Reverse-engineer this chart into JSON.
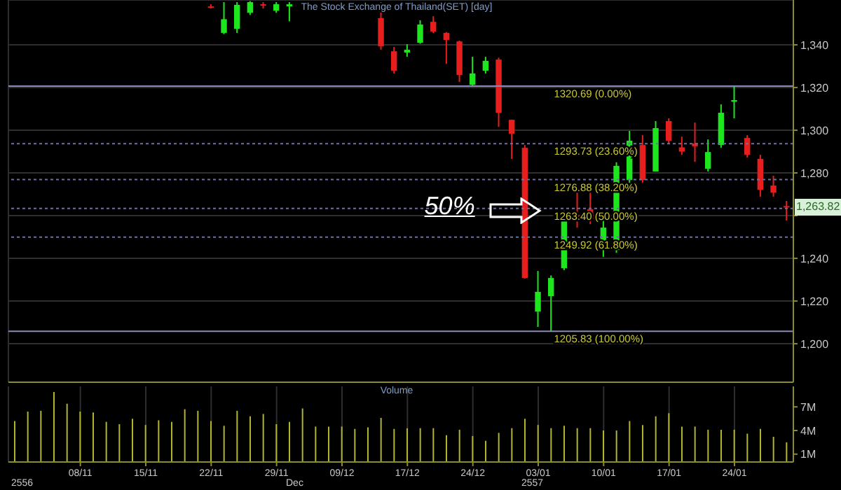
{
  "chart_data": [
    {
      "type": "candlestick",
      "title": "The Stock Exchange of Thailand(SET) [day]",
      "categories": [
        null,
        null,
        null,
        null,
        null,
        null,
        null,
        null,
        null,
        null,
        null,
        null,
        null,
        null,
        null,
        null,
        null,
        null,
        null,
        null,
        null,
        null,
        null,
        null,
        null,
        null,
        null,
        null,
        null,
        null,
        null,
        null,
        null,
        null,
        null,
        null,
        null,
        null,
        null,
        null,
        null,
        null,
        null,
        null,
        null,
        null,
        null,
        null,
        null,
        null,
        null,
        null,
        null,
        null,
        null,
        null,
        null,
        null,
        null,
        null
      ],
      "ohlc": [
        null,
        null,
        null,
        null,
        null,
        null,
        null,
        null,
        null,
        null,
        null,
        null,
        null,
        null,
        null,
        [
          1358,
          1359,
          1357,
          1357.5
        ],
        [
          1345.6,
          1360,
          1345,
          1352
        ],
        [
          1347.5,
          1360,
          1345.6,
          1358.7
        ],
        [
          1355,
          1360.5,
          1354,
          1360
        ],
        [
          1359,
          1360,
          1357,
          1358.5
        ],
        [
          1356,
          1360,
          1355,
          1359
        ],
        [
          1358,
          1360,
          1351,
          1359
        ],
        null,
        null,
        null,
        null,
        null,
        null,
        [
          1352.5,
          1360,
          1337.7,
          1339.3
        ],
        [
          1337,
          1339,
          1326.6,
          1327.9
        ],
        [
          1336.4,
          1340.3,
          1334.4,
          1337.7
        ],
        [
          1341,
          1351.5,
          1340.5,
          1349.5
        ],
        [
          1350.8,
          1353.4,
          1345.5,
          1346.2
        ],
        [
          1345.6,
          1346,
          1331.1,
          1342.3
        ],
        [
          1341.6,
          1342,
          1322.6,
          1325.9
        ],
        [
          1321.3,
          1334.4,
          1320.5,
          1326.6
        ],
        [
          1327.9,
          1334.4,
          1326.6,
          1332.5
        ],
        [
          1333.1,
          1334,
          1301.6,
          1308.2
        ],
        [
          1304.9,
          1305,
          1286.6,
          1298.4
        ],
        [
          1291.8,
          1293.1,
          1230.5,
          1230.8
        ],
        [
          1215.1,
          1234.1,
          1207.9,
          1224.3
        ],
        [
          1222.3,
          1232,
          1205.83,
          1230.8
        ],
        [
          1235.4,
          1262.3,
          1234.5,
          1261.6
        ],
        [
          1260.3,
          1272,
          1254.4,
          1257.7
        ],
        [
          1263,
          1270.8,
          1256,
          1258.4
        ],
        [
          1247.9,
          1258,
          1240.7,
          1254.4
        ],
        [
          1243.9,
          1285,
          1242.6,
          1283.3
        ],
        [
          1276.7,
          1299.7,
          1275.4,
          1295.1
        ],
        [
          1293.1,
          1297.7,
          1275.4,
          1276.7
        ],
        [
          1280.7,
          1304.3,
          1280.7,
          1301
        ],
        [
          1304.3,
          1305.6,
          1293.8,
          1295.1
        ],
        [
          1292,
          1297,
          1288.5,
          1290
        ],
        [
          1293.8,
          1303.6,
          1285.2,
          1292.5
        ],
        [
          1282,
          1295.7,
          1280.7,
          1289.8
        ],
        [
          1293.1,
          1312.1,
          1291.8,
          1308.2
        ],
        [
          1313.4,
          1320.69,
          1305.6,
          1314.1
        ],
        [
          1296.4,
          1297.7,
          1287.2,
          1288.5
        ],
        [
          1286.6,
          1288.5,
          1268.9,
          1272.1
        ],
        [
          1274.1,
          1278.7,
          1268.9,
          1270.8
        ],
        [
          1264.5,
          1266.9,
          1257.7,
          1263.82
        ]
      ],
      "colors": [
        null,
        null,
        null,
        null,
        null,
        null,
        null,
        null,
        null,
        null,
        null,
        null,
        null,
        null,
        null,
        "#e61e1e",
        "#1ee61e",
        "#1ee61e",
        "#1ee61e",
        "#e61e1e",
        "#1ee61e",
        "#1ee61e",
        null,
        null,
        null,
        null,
        null,
        null,
        "#e61e1e",
        "#e61e1e",
        "#1ee61e",
        "#1ee61e",
        "#e61e1e",
        "#e61e1e",
        "#e61e1e",
        "#1ee61e",
        "#1ee61e",
        "#e61e1e",
        "#e61e1e",
        "#e61e1e",
        "#1ee61e",
        "#1ee61e",
        "#1ee61e",
        "#e61e1e",
        "#e61e1e",
        "#1ee61e",
        "#1ee61e",
        "#1ee61e",
        "#e61e1e",
        "#1ee61e",
        "#e61e1e",
        "#e61e1e",
        "#e61e1e",
        "#1ee61e",
        "#1ee61e",
        "#1ee61e",
        "#e61e1e",
        "#e61e1e",
        "#e61e1e",
        "#e61e1e"
      ],
      "ylim": [
        1182,
        1361
      ],
      "yticks": [
        {
          "value": 1200,
          "label": "1,200"
        },
        {
          "value": 1220,
          "label": "1,220"
        },
        {
          "value": 1240,
          "label": "1,240"
        },
        {
          "value": 1260,
          "label": null
        },
        {
          "value": 1280,
          "label": "1,280"
        },
        {
          "value": 1300,
          "label": "1,300"
        },
        {
          "value": 1320,
          "label": "1,320"
        },
        {
          "value": 1340,
          "label": "1,340"
        }
      ],
      "grid": true,
      "tick_labels": "y",
      "ref_lines": [
        {
          "axis": "y",
          "value": 1320.69,
          "label": "1320.69 (0.00%)",
          "color": "#8a8ab8",
          "line_style": "solid"
        },
        {
          "axis": "y",
          "value": 1293.73,
          "label": "1293.73 (23.60%)",
          "color": "#7070a0",
          "line_style": "dotted"
        },
        {
          "axis": "y",
          "value": 1276.88,
          "label": "1276.88 (38.20%)",
          "color": "#7070a0",
          "line_style": "dotted"
        },
        {
          "axis": "y",
          "value": 1263.4,
          "label": "1263.40 (50.00%)",
          "color": "#7070a0",
          "line_style": "dotted"
        },
        {
          "axis": "y",
          "value": 1249.92,
          "label": "1249.92 (61.80%)",
          "color": "#7070a0",
          "line_style": "dotted"
        },
        {
          "axis": "y",
          "value": 1205.83,
          "label": "1205.83 (100.00%)",
          "color": "#8a8ab8",
          "line_style": "solid"
        }
      ],
      "annotations": [
        "50%",
        {
          "text": "1,263.82",
          "y": 1263.82
        }
      ]
    },
    {
      "type": "bar",
      "title": "Volume",
      "categories": [
        null,
        null,
        null,
        null,
        null,
        "08/11",
        null,
        null,
        null,
        null,
        "15/11",
        null,
        null,
        null,
        null,
        "22/11",
        null,
        null,
        null,
        null,
        "29/11",
        null,
        null,
        null,
        null,
        "09/12",
        null,
        null,
        null,
        null,
        "17/12",
        null,
        null,
        null,
        null,
        "24/12",
        null,
        null,
        null,
        null,
        "03/01",
        null,
        null,
        null,
        null,
        "10/01",
        null,
        null,
        null,
        null,
        "17/01",
        null,
        null,
        null,
        null,
        "24/01",
        null,
        null,
        null,
        null
      ],
      "values": [
        5.2,
        6.4,
        6.5,
        8.9,
        7.4,
        6.4,
        6.3,
        5.1,
        4.8,
        5.5,
        4.7,
        5.3,
        5.1,
        6.7,
        6.5,
        5.2,
        4.6,
        6.5,
        5.8,
        6.1,
        4.8,
        5.1,
        6.8,
        4.5,
        4.5,
        4.5,
        4.2,
        4.4,
        5.6,
        4.2,
        4.3,
        4.3,
        4.3,
        3.4,
        4.1,
        3.3,
        2.7,
        3.7,
        4.3,
        5.5,
        4.7,
        4.3,
        4.6,
        4.3,
        4.3,
        4.0,
        4.0,
        5.2,
        4.7,
        5.8,
        6.2,
        4.5,
        4.5,
        4.1,
        4.1,
        4.1,
        3.6,
        4.2,
        3.2,
        2.5
      ],
      "color": "#b4b42a",
      "ylim": [
        0,
        9.6
      ],
      "yticks": [
        {
          "value": 1,
          "label": "1M"
        },
        {
          "value": 4,
          "label": "4M"
        },
        {
          "value": 7,
          "label": "7M"
        }
      ],
      "grid": "x",
      "annotations": [
        "2556",
        "Dec",
        "2557"
      ]
    }
  ]
}
